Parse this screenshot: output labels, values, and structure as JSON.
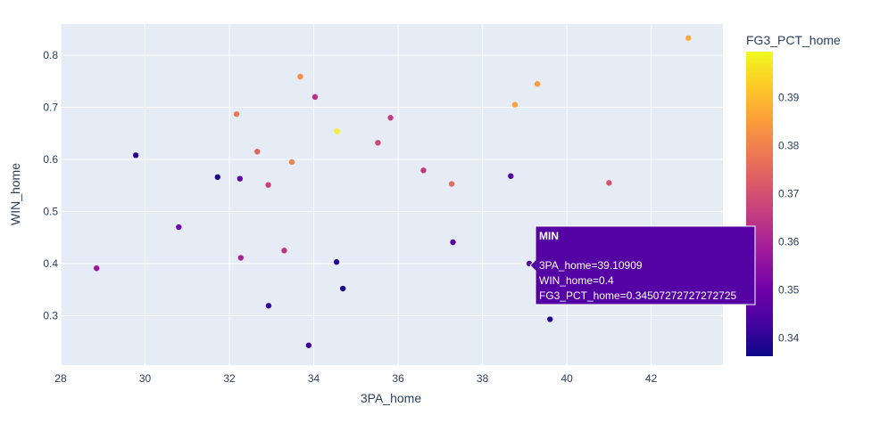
{
  "chart_data": {
    "type": "scatter",
    "xlabel": "3PA_home",
    "ylabel": "WIN_home",
    "xlim": [
      28.0,
      43.7
    ],
    "ylim": [
      0.205,
      0.86
    ],
    "x_ticks": [
      28,
      30,
      32,
      34,
      36,
      38,
      40,
      42
    ],
    "y_ticks": [
      0.3,
      0.4,
      0.5,
      0.6,
      0.7,
      0.8
    ],
    "grid": true,
    "colorbar": {
      "title": "FG3_PCT_home",
      "range": [
        0.3362,
        0.3995
      ],
      "ticks": [
        0.34,
        0.35,
        0.36,
        0.37,
        0.38,
        0.39
      ],
      "colorscale": [
        "#0d0887",
        "#46039f",
        "#7201a8",
        "#9c179e",
        "#bd3786",
        "#d8576b",
        "#ed7953",
        "#fb9f3a",
        "#fdca26",
        "#f0f921"
      ]
    },
    "points": [
      {
        "x": 28.85,
        "y": 0.391,
        "c": 0.357
      },
      {
        "x": 29.78,
        "y": 0.608,
        "c": 0.339
      },
      {
        "x": 30.8,
        "y": 0.47,
        "c": 0.35
      },
      {
        "x": 31.72,
        "y": 0.566,
        "c": 0.338
      },
      {
        "x": 32.17,
        "y": 0.687,
        "c": 0.378
      },
      {
        "x": 32.25,
        "y": 0.563,
        "c": 0.347
      },
      {
        "x": 32.27,
        "y": 0.411,
        "c": 0.36
      },
      {
        "x": 32.66,
        "y": 0.615,
        "c": 0.374
      },
      {
        "x": 32.92,
        "y": 0.551,
        "c": 0.367
      },
      {
        "x": 32.93,
        "y": 0.319,
        "c": 0.341
      },
      {
        "x": 33.3,
        "y": 0.425,
        "c": 0.364
      },
      {
        "x": 33.48,
        "y": 0.595,
        "c": 0.38
      },
      {
        "x": 33.68,
        "y": 0.759,
        "c": 0.382
      },
      {
        "x": 33.88,
        "y": 0.243,
        "c": 0.342
      },
      {
        "x": 34.03,
        "y": 0.72,
        "c": 0.363
      },
      {
        "x": 34.54,
        "y": 0.403,
        "c": 0.339
      },
      {
        "x": 34.55,
        "y": 0.654,
        "c": 0.398
      },
      {
        "x": 34.69,
        "y": 0.352,
        "c": 0.338
      },
      {
        "x": 35.52,
        "y": 0.632,
        "c": 0.368
      },
      {
        "x": 35.82,
        "y": 0.68,
        "c": 0.366
      },
      {
        "x": 36.6,
        "y": 0.579,
        "c": 0.365
      },
      {
        "x": 37.27,
        "y": 0.553,
        "c": 0.376
      },
      {
        "x": 37.3,
        "y": 0.441,
        "c": 0.347
      },
      {
        "x": 38.67,
        "y": 0.568,
        "c": 0.345
      },
      {
        "x": 38.77,
        "y": 0.705,
        "c": 0.386
      },
      {
        "x": 39.11,
        "y": 0.4,
        "c": 0.345
      },
      {
        "x": 39.3,
        "y": 0.745,
        "c": 0.385
      },
      {
        "x": 39.6,
        "y": 0.293,
        "c": 0.339
      },
      {
        "x": 41.0,
        "y": 0.555,
        "c": 0.371
      },
      {
        "x": 42.88,
        "y": 0.833,
        "c": 0.387
      }
    ],
    "hover": {
      "title": "MIN",
      "line1": "3PA_home=39.10909",
      "line2": "WIN_home=0.4",
      "line3": "FG3_PCT_home=0.34507272727272725",
      "bg": "#5402a3"
    }
  },
  "colors": {
    "plot_bg": "#e5ecf6",
    "grid": "#ffffff",
    "text": "#2a3f5f"
  }
}
